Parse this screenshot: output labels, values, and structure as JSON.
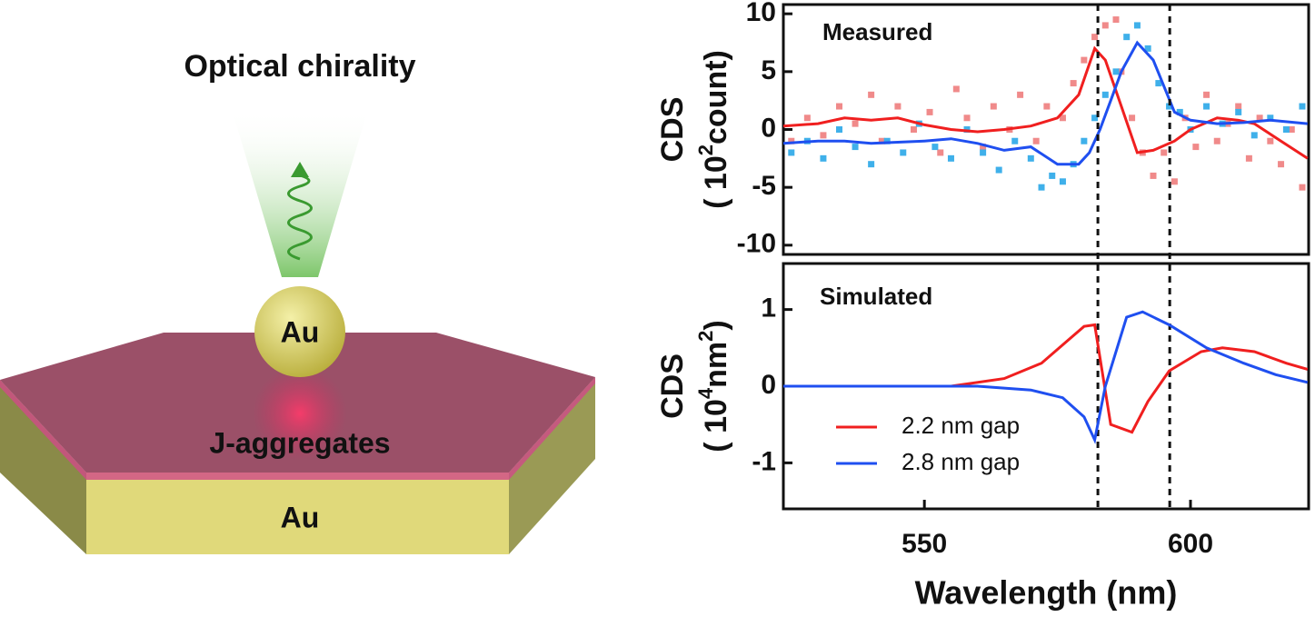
{
  "illustration": {
    "title": "Optical chirality",
    "sphere_label": "Au",
    "layer_label": "J-aggregates",
    "base_label": "Au"
  },
  "chart_data": [
    {
      "type": "line",
      "annotation": "Measured",
      "y_label": "CDS",
      "y_unit": {
        "pre": "( 10",
        "exp": "2",
        "post": "count)"
      },
      "xlim": [
        523.5,
        622.2
      ],
      "ylim": [
        -10.8,
        10.8
      ],
      "yticks": [
        -10,
        -5,
        0,
        5,
        10
      ],
      "vlines": [
        582.6,
        596.1
      ],
      "series": [
        {
          "color": "#f01f1f",
          "x": [
            523.5,
            530,
            535,
            540,
            545,
            550,
            555,
            560,
            565,
            570,
            575,
            579,
            582,
            584,
            587,
            590,
            593,
            597,
            600,
            605,
            609,
            612,
            617,
            622
          ],
          "values": [
            0.3,
            0.5,
            1,
            0.8,
            1,
            0.4,
            0,
            -0.2,
            0,
            0.3,
            1,
            3,
            7,
            6,
            2,
            -2,
            -1.8,
            -1,
            0,
            1,
            0.8,
            0.5,
            -1,
            -2.5
          ]
        },
        {
          "color": "#1f4ff0",
          "x": [
            523.5,
            530,
            535,
            540,
            545,
            550,
            555,
            560,
            565,
            570,
            575,
            579,
            581,
            583,
            585,
            587,
            590,
            593,
            597,
            600,
            605,
            610,
            615,
            622
          ],
          "values": [
            -1.2,
            -1,
            -1,
            -1.2,
            -1.1,
            -1,
            -0.8,
            -1.2,
            -1.8,
            -1.5,
            -3,
            -3,
            -2,
            0,
            2.5,
            5,
            7.5,
            6,
            1.5,
            0.8,
            0.5,
            0.6,
            0.8,
            0.5
          ]
        }
      ],
      "scatter": [
        {
          "color": "#f08a8a",
          "x": [
            525,
            528,
            531,
            534,
            537,
            540,
            542,
            545,
            548,
            551,
            553,
            556,
            558,
            561,
            563,
            566,
            568,
            571,
            573,
            576,
            578,
            580,
            582,
            584,
            586,
            587,
            589,
            591,
            593,
            595,
            597,
            599,
            601,
            603,
            605,
            607,
            609,
            611,
            613,
            615,
            617,
            619,
            621
          ],
          "values": [
            -1,
            1,
            -0.5,
            2,
            0.5,
            3,
            -1,
            2,
            0,
            1.5,
            -2,
            3.5,
            1,
            -1.5,
            2,
            0,
            3,
            -1,
            2,
            1,
            4,
            6,
            8,
            9,
            9.5,
            5,
            1,
            -2,
            -4,
            -2,
            -4.5,
            1,
            -1.5,
            3,
            -1,
            0.5,
            2,
            -2.5,
            1,
            -1,
            -3,
            0,
            -5
          ]
        },
        {
          "color": "#3fb0ea",
          "x": [
            525,
            528,
            531,
            534,
            537,
            540,
            543,
            546,
            549,
            552,
            555,
            558,
            561,
            564,
            567,
            570,
            572,
            574,
            576,
            578,
            580,
            582,
            584,
            586,
            588,
            590,
            592,
            594,
            596,
            598,
            600,
            603,
            606,
            609,
            612,
            615,
            618,
            621
          ],
          "values": [
            -2,
            -1,
            -2.5,
            0,
            -1.5,
            -3,
            -1,
            -2,
            0.5,
            -1.5,
            -2.5,
            0,
            -2,
            -3.5,
            -1,
            -2.5,
            -5,
            -4,
            -4.5,
            -3,
            -1,
            1,
            3,
            5,
            8,
            9,
            7,
            4,
            2,
            1.5,
            0,
            2,
            0.5,
            1.5,
            -0.5,
            1,
            0,
            2
          ]
        }
      ]
    },
    {
      "type": "line",
      "annotation": "Simulated",
      "y_label": "CDS",
      "y_unit": {
        "pre": "( 10",
        "exp": "4",
        "post": "nm",
        "exp2": "2",
        "close": ")"
      },
      "x_label": "Wavelength (nm)",
      "xlim": [
        523.5,
        622.2
      ],
      "ylim": [
        -1.6,
        1.6
      ],
      "xticks": [
        550,
        600
      ],
      "yticks": [
        -1,
        0,
        1
      ],
      "series": [
        {
          "name": "2.2 nm gap",
          "color": "#f01f1f",
          "x": [
            523.5,
            545,
            555,
            565,
            572,
            577,
            580,
            582,
            585,
            589,
            592,
            596,
            602,
            606,
            612,
            618,
            622
          ],
          "values": [
            0,
            0,
            0,
            0.1,
            0.3,
            0.6,
            0.78,
            0.8,
            -0.5,
            -0.6,
            -0.2,
            0.2,
            0.45,
            0.5,
            0.45,
            0.3,
            0.22
          ]
        },
        {
          "name": "2.8 nm gap",
          "color": "#1f4ff0",
          "x": [
            523.5,
            545,
            560,
            570,
            576,
            580,
            582,
            584,
            588,
            591,
            596,
            603,
            610,
            616,
            622
          ],
          "values": [
            0,
            0,
            0,
            -0.05,
            -0.15,
            -0.4,
            -0.7,
            0,
            0.9,
            0.97,
            0.8,
            0.5,
            0.3,
            0.15,
            0.05
          ]
        }
      ]
    }
  ]
}
